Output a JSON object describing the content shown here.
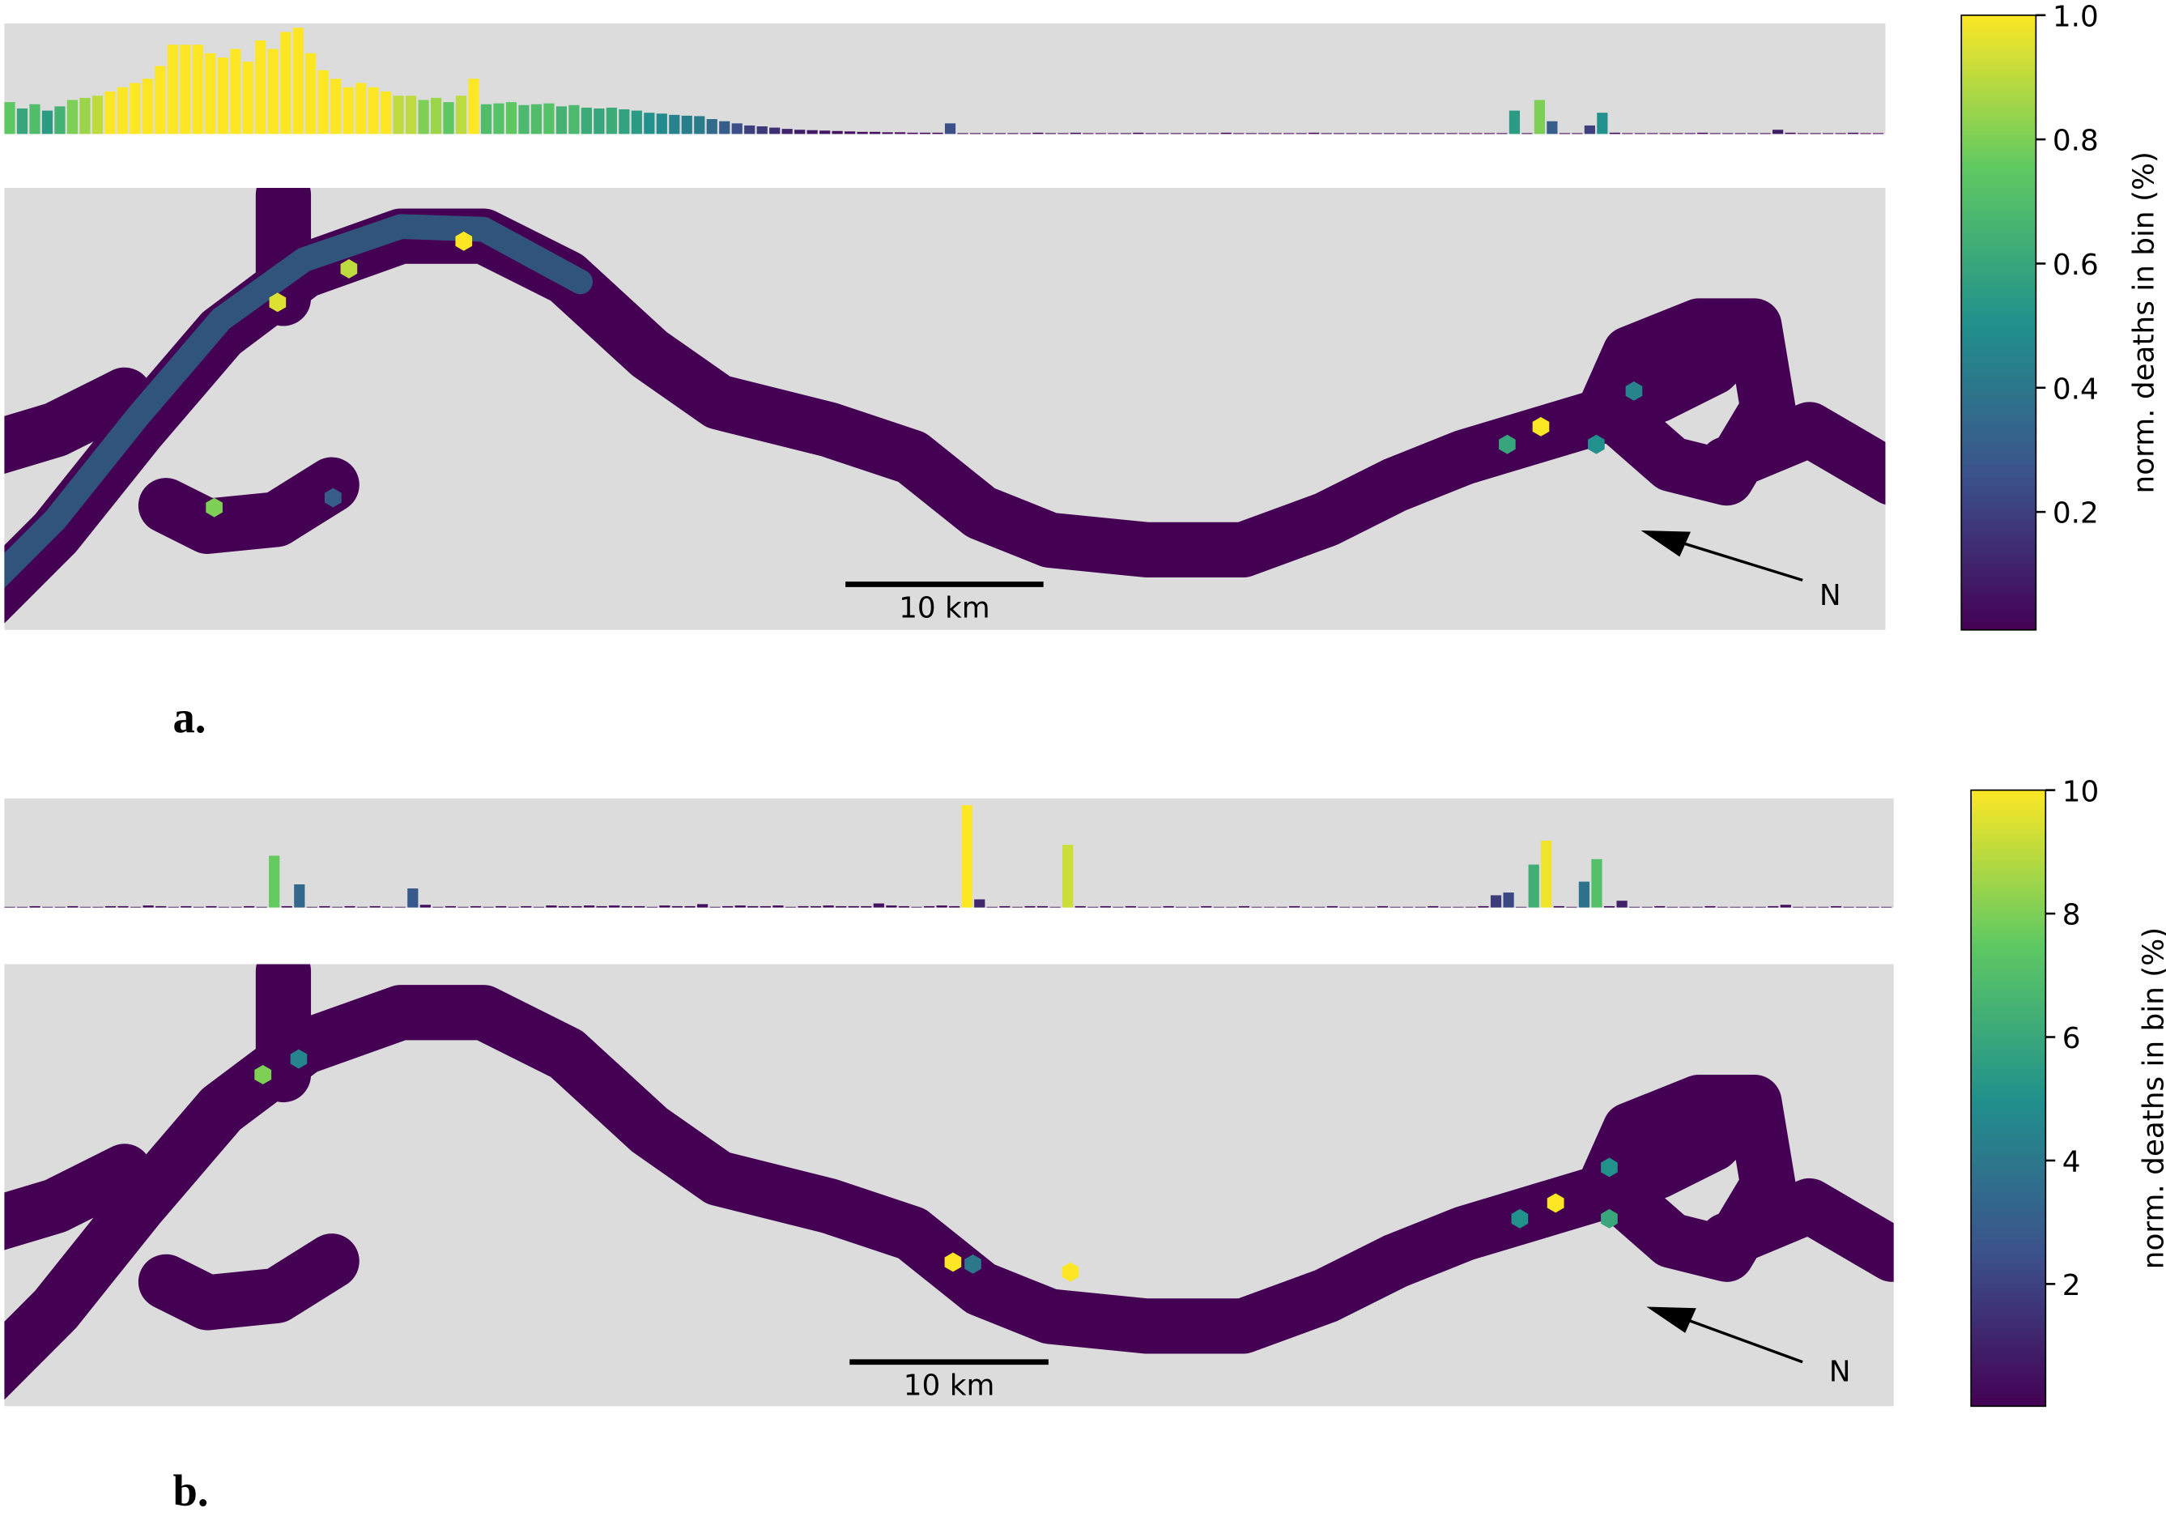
{
  "chart_data": [
    {
      "type": "hexbin",
      "panel_label": "a.",
      "colorbar_label": "norm. deaths in bin (%)",
      "clim": [
        0.01,
        1.0
      ],
      "cticks": [
        0.2,
        0.4,
        0.6,
        0.8,
        {
          "value": 1,
          "label": "1.0"
        }
      ],
      "histogram": {
        "ylim": [
          0,
          2.6
        ],
        "values": [
          0.75,
          0.6,
          0.7,
          0.55,
          0.65,
          0.8,
          0.85,
          0.9,
          1.0,
          1.1,
          1.2,
          1.3,
          1.6,
          2.1,
          2.1,
          2.1,
          1.9,
          1.8,
          2.0,
          1.7,
          2.2,
          2.0,
          2.4,
          2.5,
          1.9,
          1.5,
          1.3,
          1.1,
          1.2,
          1.1,
          1.0,
          0.9,
          0.9,
          0.8,
          0.85,
          0.75,
          0.9,
          1.3,
          0.7,
          0.72,
          0.75,
          0.68,
          0.7,
          0.72,
          0.65,
          0.68,
          0.62,
          0.6,
          0.62,
          0.58,
          0.55,
          0.5,
          0.48,
          0.45,
          0.43,
          0.42,
          0.35,
          0.3,
          0.25,
          0.2,
          0.18,
          0.15,
          0.12,
          0.1,
          0.09,
          0.08,
          0.07,
          0.06,
          0.05,
          0.05,
          0.04,
          0.04,
          0.03,
          0.03,
          0.03,
          0.25,
          0.02,
          0.02,
          0.02,
          0.02,
          0.02,
          0.02,
          0.03,
          0.02,
          0.02,
          0.03,
          0.02,
          0.02,
          0.02,
          0.02,
          0.03,
          0.02,
          0.02,
          0.02,
          0.02,
          0.02,
          0.02,
          0.03,
          0.02,
          0.02,
          0.02,
          0.02,
          0.02,
          0.02,
          0.03,
          0.02,
          0.02,
          0.02,
          0.02,
          0.02,
          0.02,
          0.02,
          0.02,
          0.02,
          0.02,
          0.02,
          0.02,
          0.02,
          0.02,
          0.02,
          0.55,
          0.02,
          0.8,
          0.3,
          0.02,
          0.02,
          0.2,
          0.5,
          0.03,
          0.02,
          0.02,
          0.02,
          0.02,
          0.02,
          0.02,
          0.03,
          0.02,
          0.02,
          0.02,
          0.02,
          0.02,
          0.1,
          0.03,
          0.02,
          0.02,
          0.02,
          0.02,
          0.03,
          0.02,
          0.02
        ]
      },
      "xlim": [
        0,
        95
      ],
      "ylim": [
        0,
        22.4
      ],
      "hexes": [
        {
          "x": 10.6,
          "y": 6.2,
          "value": 0.8
        },
        {
          "x": 13.8,
          "y": 16.6,
          "value": 0.95
        },
        {
          "x": 17.4,
          "y": 18.3,
          "value": 0.9
        },
        {
          "x": 23.2,
          "y": 19.7,
          "value": 1.0
        },
        {
          "x": 16.6,
          "y": 6.7,
          "value": 0.3
        },
        {
          "x": 77.6,
          "y": 10.3,
          "value": 1.0
        },
        {
          "x": 75.9,
          "y": 9.4,
          "value": 0.6
        },
        {
          "x": 80.4,
          "y": 9.4,
          "value": 0.5
        },
        {
          "x": 82.3,
          "y": 12.1,
          "value": 0.45
        }
      ],
      "scale_bar": {
        "length": 10,
        "label": "10 km"
      },
      "north_label": "N"
    },
    {
      "type": "hexbin",
      "panel_label": "b.",
      "colorbar_label": "norm. deaths in bin (%)",
      "clim": [
        0.02,
        10
      ],
      "cticks": [
        2,
        4,
        6,
        8,
        10
      ],
      "histogram": {
        "ylim": [
          0,
          16
        ],
        "values": [
          0.1,
          0.1,
          0.2,
          0.1,
          0.1,
          0.2,
          0.1,
          0.1,
          0.2,
          0.2,
          0.1,
          0.3,
          0.2,
          0.1,
          0.2,
          0.1,
          0.2,
          0.1,
          0.1,
          0.2,
          0.1,
          7.6,
          0.2,
          3.4,
          0.1,
          0.2,
          0.1,
          0.2,
          0.1,
          0.2,
          0.1,
          0.1,
          2.8,
          0.4,
          0.1,
          0.2,
          0.1,
          0.2,
          0.1,
          0.2,
          0.1,
          0.2,
          0.1,
          0.3,
          0.2,
          0.2,
          0.3,
          0.2,
          0.3,
          0.2,
          0.2,
          0.1,
          0.3,
          0.2,
          0.2,
          0.5,
          0.1,
          0.2,
          0.3,
          0.2,
          0.2,
          0.3,
          0.1,
          0.2,
          0.2,
          0.3,
          0.2,
          0.2,
          0.2,
          0.6,
          0.3,
          0.2,
          0.1,
          0.2,
          0.3,
          0.2,
          15.0,
          1.2,
          0.1,
          0.2,
          0.1,
          0.2,
          0.2,
          0.1,
          9.2,
          0.2,
          0.1,
          0.2,
          0.1,
          0.2,
          0.1,
          0.1,
          0.2,
          0.1,
          0.1,
          0.2,
          0.1,
          0.1,
          0.2,
          0.1,
          0.1,
          0.1,
          0.2,
          0.1,
          0.1,
          0.2,
          0.1,
          0.1,
          0.1,
          0.2,
          0.1,
          0.1,
          0.1,
          0.2,
          0.1,
          0.1,
          0.1,
          0.2,
          1.8,
          2.2,
          0.1,
          6.3,
          9.8,
          0.2,
          0.1,
          3.8,
          7.1,
          0.2,
          1.0,
          0.1,
          0.1,
          0.2,
          0.1,
          0.1,
          0.1,
          0.2,
          0.1,
          0.1,
          0.1,
          0.1,
          0.2,
          0.4,
          0.1,
          0.1,
          0.1,
          0.2,
          0.1,
          0.1,
          0.1,
          0.1
        ]
      },
      "xlim": [
        0,
        95
      ],
      "ylim": [
        0,
        22.4
      ],
      "hexes": [
        {
          "x": 13.0,
          "y": 16.8,
          "value": 8
        },
        {
          "x": 14.8,
          "y": 17.6,
          "value": 4.5
        },
        {
          "x": 47.7,
          "y": 7.3,
          "value": 10
        },
        {
          "x": 48.7,
          "y": 7.2,
          "value": 4
        },
        {
          "x": 53.6,
          "y": 6.8,
          "value": 10
        },
        {
          "x": 78.0,
          "y": 10.3,
          "value": 10
        },
        {
          "x": 76.2,
          "y": 9.5,
          "value": 5
        },
        {
          "x": 80.7,
          "y": 9.5,
          "value": 6
        },
        {
          "x": 80.7,
          "y": 12.1,
          "value": 5
        }
      ],
      "scale_bar": {
        "length": 10,
        "label": "10 km"
      },
      "north_label": "N"
    }
  ]
}
